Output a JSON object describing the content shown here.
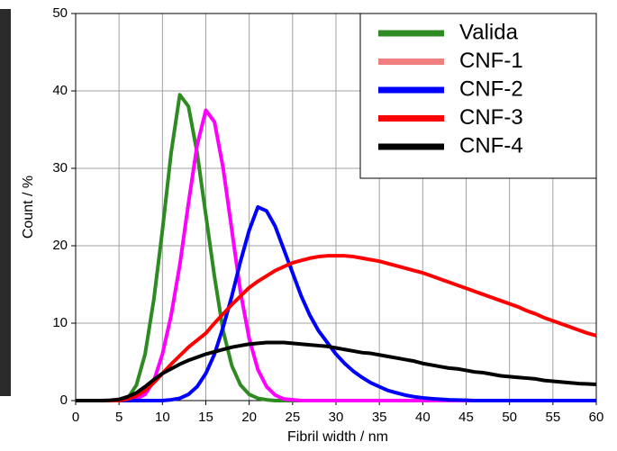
{
  "chart_data": {
    "type": "line",
    "x_label": "Fibril width / nm",
    "y_label": "Count / %",
    "x": [
      0,
      1,
      2,
      3,
      4,
      5,
      6,
      7,
      8,
      9,
      10,
      11,
      12,
      13,
      14,
      15,
      16,
      17,
      18,
      19,
      20,
      21,
      22,
      23,
      24,
      25,
      26,
      27,
      28,
      29,
      30,
      31,
      32,
      33,
      34,
      35,
      36,
      37,
      38,
      39,
      40,
      41,
      42,
      43,
      44,
      45,
      46,
      47,
      48,
      49,
      50,
      51,
      52,
      53,
      54,
      55,
      56,
      57,
      58,
      59,
      60
    ],
    "series": [
      {
        "name": "Valida",
        "color": "#2e8b22",
        "values": [
          0,
          0,
          0,
          0,
          0,
          0,
          0.3,
          2,
          6,
          13,
          22,
          32,
          39.5,
          38,
          32,
          24,
          16,
          9,
          4.5,
          2,
          0.8,
          0.3,
          0.1,
          0,
          0,
          0,
          0,
          0,
          0,
          0,
          0,
          0,
          0,
          0,
          0,
          0,
          0,
          0,
          0,
          0,
          0,
          0,
          0,
          0,
          0,
          0,
          0,
          0,
          0,
          0,
          0,
          0,
          0,
          0,
          0,
          0,
          0,
          0,
          0,
          0,
          0
        ]
      },
      {
        "name": "CNF-1",
        "color": "#ff00ff",
        "legend_color": "#f08080",
        "values": [
          0,
          0,
          0,
          0,
          0,
          0,
          0,
          0.2,
          0.8,
          2.5,
          6,
          11,
          17.5,
          25.5,
          33,
          37.5,
          36,
          30,
          22,
          14,
          8,
          4,
          1.8,
          0.7,
          0.2,
          0.1,
          0,
          0,
          0,
          0,
          0,
          0,
          0,
          0,
          0,
          0,
          0,
          0,
          0,
          0,
          0,
          0,
          0,
          0,
          0,
          0,
          0,
          0,
          0,
          0,
          0,
          0,
          0,
          0,
          0,
          0,
          0,
          0,
          0,
          0,
          0
        ]
      },
      {
        "name": "CNF-2",
        "color": "#0000ff",
        "values": [
          0,
          0,
          0,
          0,
          0,
          0,
          0,
          0,
          0,
          0,
          0,
          0.1,
          0.3,
          0.8,
          1.8,
          3.5,
          6,
          9.5,
          13.5,
          18,
          22,
          25,
          24.5,
          22.5,
          19.5,
          16.5,
          13.5,
          11,
          9,
          7.5,
          6,
          4.8,
          3.8,
          3,
          2.3,
          1.8,
          1.3,
          1,
          0.7,
          0.5,
          0.35,
          0.25,
          0.17,
          0.1,
          0.07,
          0.05,
          0,
          0,
          0,
          0,
          0,
          0,
          0,
          0,
          0,
          0,
          0,
          0,
          0,
          0,
          0
        ]
      },
      {
        "name": "CNF-3",
        "color": "#ff0000",
        "values": [
          0,
          0,
          0,
          0,
          0,
          0,
          0.2,
          0.6,
          1.3,
          2.3,
          3.5,
          4.7,
          5.8,
          6.9,
          7.8,
          8.7,
          10,
          11.2,
          12.4,
          13.5,
          14.6,
          15.4,
          16.1,
          16.8,
          17.3,
          17.8,
          18.1,
          18.4,
          18.6,
          18.7,
          18.7,
          18.7,
          18.6,
          18.4,
          18.2,
          18,
          17.7,
          17.4,
          17.1,
          16.8,
          16.5,
          16.1,
          15.7,
          15.3,
          14.9,
          14.5,
          14.1,
          13.7,
          13.3,
          12.9,
          12.5,
          12.1,
          11.6,
          11.2,
          10.7,
          10.3,
          9.9,
          9.5,
          9.1,
          8.7,
          8.4
        ]
      },
      {
        "name": "CNF-4",
        "color": "#000000",
        "values": [
          0,
          0,
          0,
          0,
          0.05,
          0.15,
          0.5,
          1,
          1.8,
          2.7,
          3.5,
          4.1,
          4.7,
          5.2,
          5.6,
          6,
          6.3,
          6.6,
          6.9,
          7.1,
          7.3,
          7.4,
          7.5,
          7.5,
          7.5,
          7.4,
          7.3,
          7.2,
          7.1,
          7,
          6.8,
          6.6,
          6.4,
          6.2,
          6.1,
          5.9,
          5.7,
          5.5,
          5.3,
          5.1,
          4.8,
          4.6,
          4.4,
          4.2,
          4.1,
          3.9,
          3.7,
          3.6,
          3.4,
          3.2,
          3.1,
          3,
          2.9,
          2.8,
          2.6,
          2.5,
          2.4,
          2.3,
          2.2,
          2.15,
          2.1
        ]
      }
    ],
    "xlim": [
      0,
      60
    ],
    "xticks": [
      0,
      5,
      10,
      15,
      20,
      25,
      30,
      35,
      40,
      45,
      50,
      55,
      60
    ],
    "ylim": [
      0,
      50
    ],
    "yticks": [
      0,
      10,
      20,
      30,
      40,
      50
    ],
    "grid": true,
    "legend": "top-right"
  }
}
